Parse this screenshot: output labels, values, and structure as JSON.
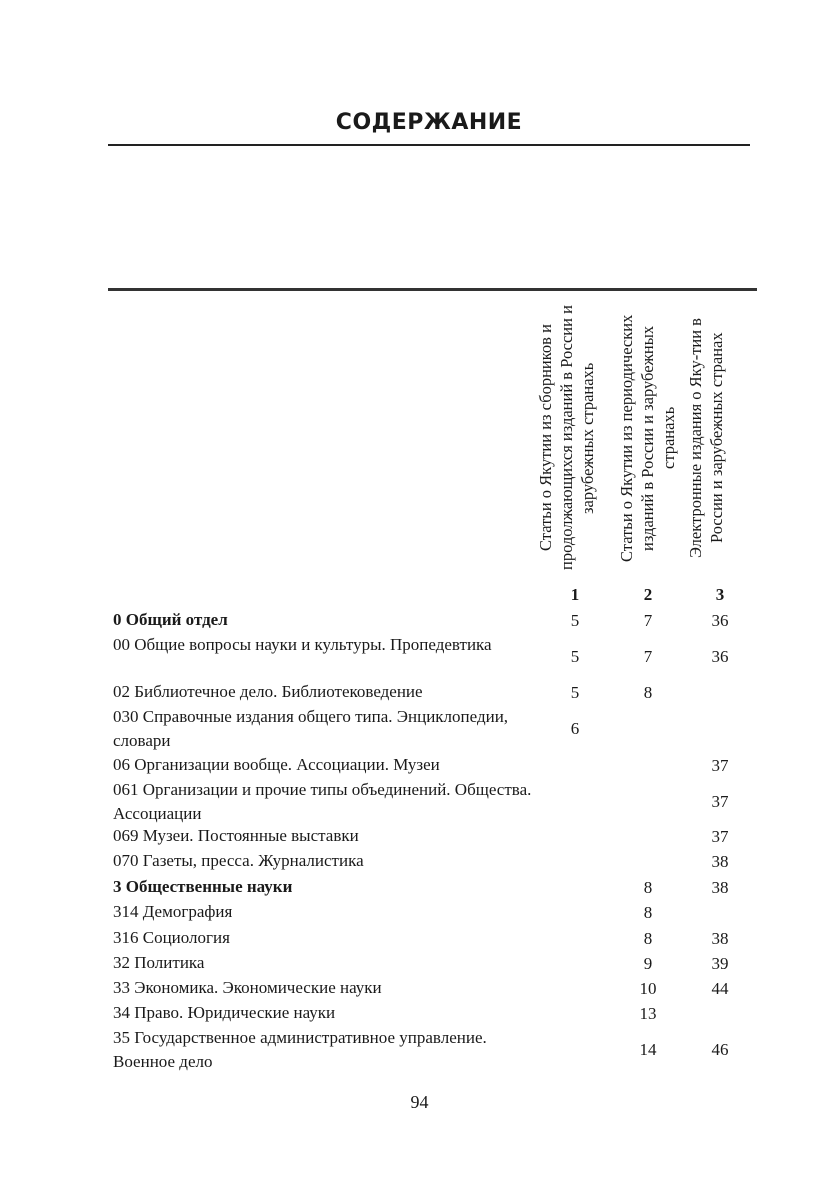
{
  "title": "СОДЕРЖАНИЕ",
  "columns": [
    {
      "header": "Статьи о Якутии из сборников и продолжающихся изданий в России и зарубежных странахь",
      "number": "1"
    },
    {
      "header": "Статьи о Якутии из периодических изданий в России и зарубежных странахь",
      "number": "2"
    },
    {
      "header": "Электронные издания о Яку-тии в России и зарубежных странах",
      "number": "3"
    }
  ],
  "rows": [
    {
      "label": "0 Общий отдел",
      "bold": true,
      "c1": "5",
      "c2": "7",
      "c3": "36"
    },
    {
      "label": "00 Общие вопросы науки и культуры. Пропедевтика",
      "c1": "5",
      "c2": "7",
      "c3": "36"
    },
    {
      "label": "02 Библиотечное дело. Библиотековедение",
      "c1": "5",
      "c2": "8",
      "c3": ""
    },
    {
      "label": "030 Справочные издания общего типа. Энциклопедии, словари",
      "c1": "6",
      "c2": "",
      "c3": ""
    },
    {
      "label": "06 Организации вообще. Ассоциации. Музеи",
      "c1": "",
      "c2": "",
      "c3": "37"
    },
    {
      "label": "061 Организации и прочие типы объединений. Общества. Ассоциации",
      "c1": "",
      "c2": "",
      "c3": "37"
    },
    {
      "label": "069 Музеи. Постоянные выставки",
      "c1": "",
      "c2": "",
      "c3": "37"
    },
    {
      "label": "070 Газеты, пресса. Журналистика",
      "c1": "",
      "c2": "",
      "c3": "38"
    },
    {
      "label": "3 Общественные науки",
      "bold": true,
      "c1": "",
      "c2": "8",
      "c3": "38"
    },
    {
      "label": "314 Демография",
      "c1": "",
      "c2": "8",
      "c3": ""
    },
    {
      "label": "316 Социология",
      "c1": "",
      "c2": "8",
      "c3": "38"
    },
    {
      "label": "32 Политика",
      "c1": "",
      "c2": "9",
      "c3": "39"
    },
    {
      "label": "33 Экономика. Экономические науки",
      "c1": "",
      "c2": "10",
      "c3": "44"
    },
    {
      "label": "34 Право. Юридические науки",
      "c1": "",
      "c2": "13",
      "c3": ""
    },
    {
      "label": "35 Государственное административное управление. Военное дело",
      "c1": "",
      "c2": "14",
      "c3": "46"
    }
  ],
  "page_number": "94"
}
